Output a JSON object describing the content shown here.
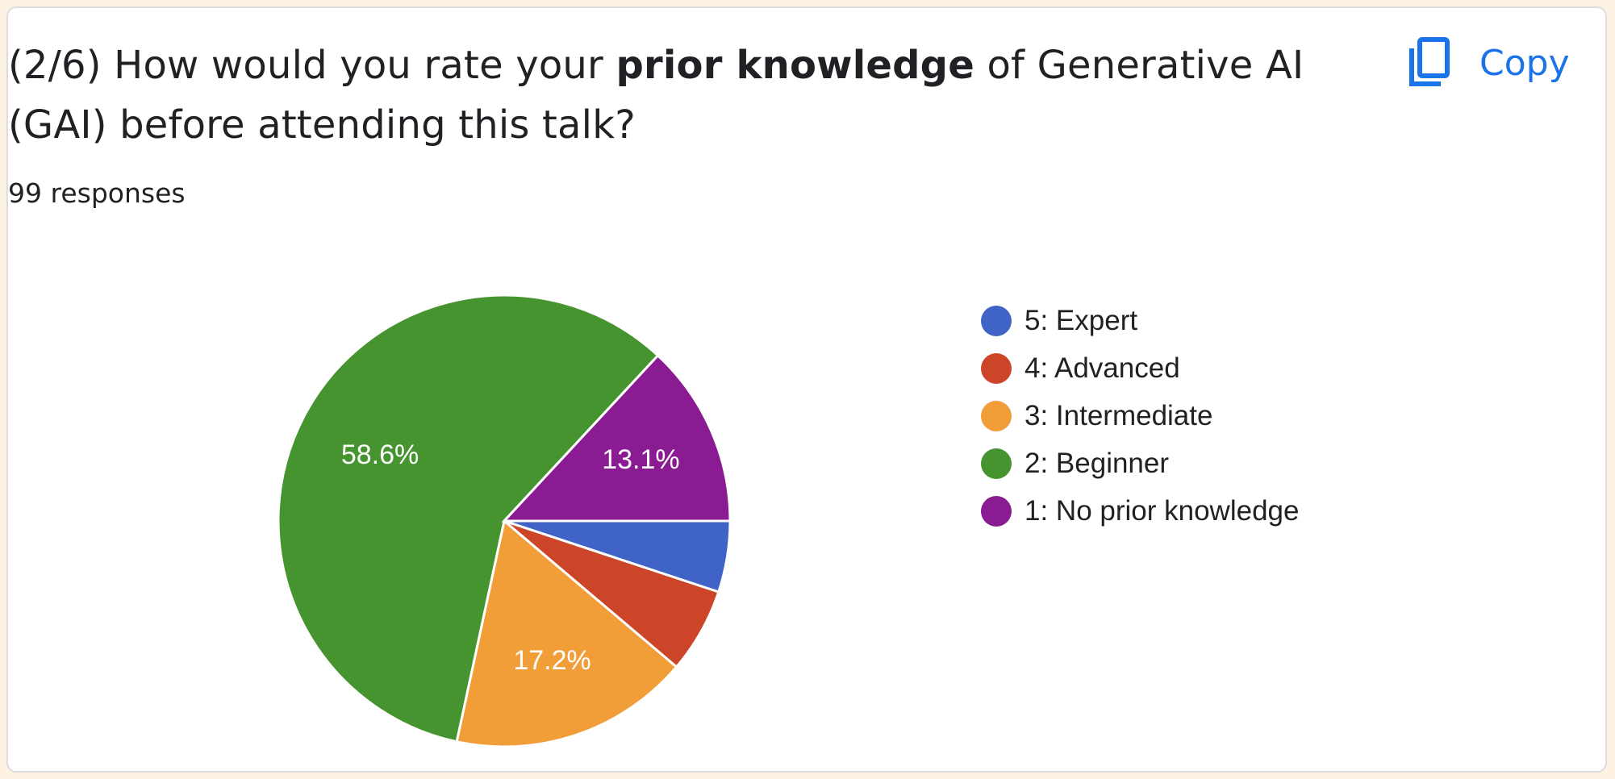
{
  "question": {
    "prefix": "(2/6) How would you rate your ",
    "bold": "prior knowledge",
    "suffix": " of Generative AI (GAI) before attending this talk?"
  },
  "responses_label": "99 responses",
  "copy_button": {
    "label": "Copy",
    "icon": "copy-icon",
    "color": "#1a73e8"
  },
  "chart_data": {
    "type": "pie",
    "categories": [
      "5: Expert",
      "4: Advanced",
      "3: Intermediate",
      "2: Beginner",
      "1: No prior knowledge"
    ],
    "values": [
      5.1,
      6.1,
      17.2,
      58.6,
      13.1
    ],
    "colors": [
      "#3f63c6",
      "#cc4529",
      "#f19d38",
      "#46942f",
      "#8b1b93"
    ],
    "data_labels": [
      "",
      "",
      "17.2%",
      "58.6%",
      "13.1%"
    ],
    "legend_position": "right"
  }
}
